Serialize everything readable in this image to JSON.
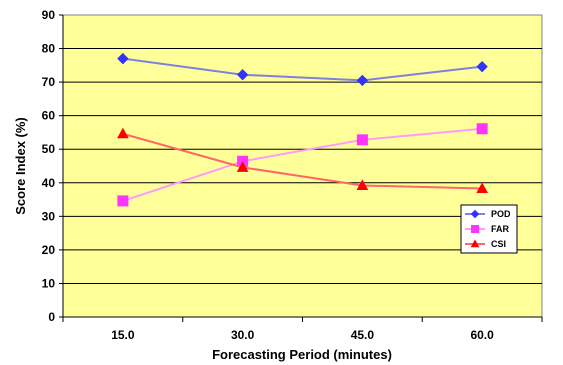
{
  "chart_data": {
    "type": "line",
    "title": "",
    "xlabel": "Forecasting Period (minutes)",
    "ylabel": "Score Index (%)",
    "categories": [
      "15.0",
      "30.0",
      "45.0",
      "60.0"
    ],
    "ylim": [
      0,
      90
    ],
    "yticks": [
      "0",
      "10",
      "20",
      "30",
      "40",
      "50",
      "60",
      "70",
      "80",
      "90"
    ],
    "grid": true,
    "legend_position": "right",
    "plot_background": "#FFFF99",
    "series": [
      {
        "name": "POD",
        "values": [
          77.0,
          72.2,
          70.5,
          74.6
        ],
        "color": "#3333FF",
        "line_color": "#8080E0",
        "marker": "diamond"
      },
      {
        "name": "FAR",
        "values": [
          34.6,
          46.4,
          52.8,
          56.1
        ],
        "color": "#FF33FF",
        "line_color": "#FF99FF",
        "marker": "square"
      },
      {
        "name": "CSI",
        "values": [
          54.6,
          44.6,
          39.2,
          38.3
        ],
        "color": "#FF0000",
        "line_color": "#FF6666",
        "marker": "triangle"
      }
    ]
  }
}
